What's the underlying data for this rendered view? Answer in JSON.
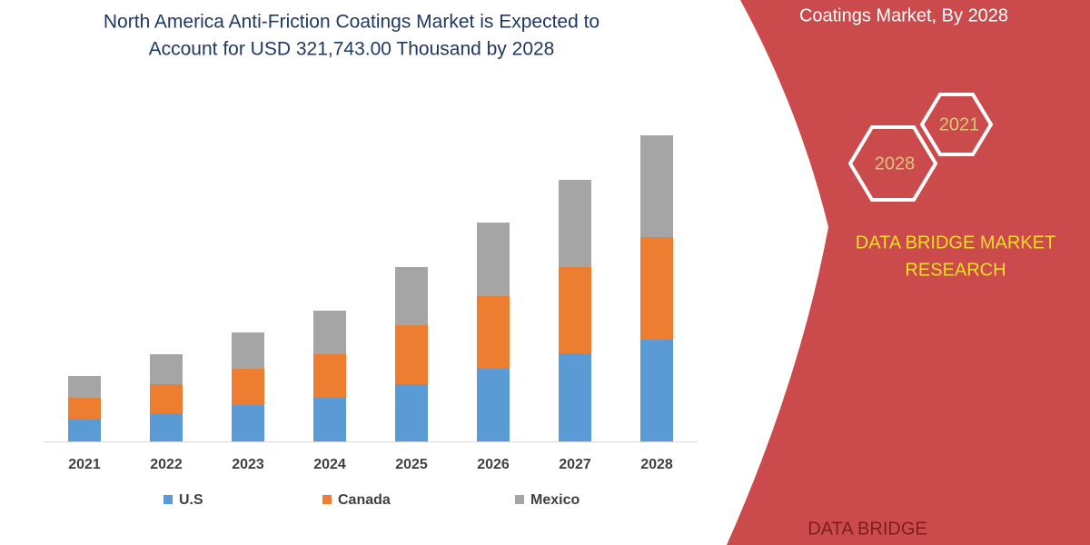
{
  "chart_data": {
    "type": "stacked-bar",
    "title": [
      "North America Anti-Friction Coatings Market is Expected to",
      "Account for USD 321,743.00 Thousand by 2028"
    ],
    "categories": [
      "2021",
      "2022",
      "2023",
      "2024",
      "2025",
      "2026",
      "2027",
      "2028"
    ],
    "series": [
      {
        "name": "U.S",
        "color": "#5b9bd5",
        "values": [
          24,
          31,
          40,
          48,
          63,
          80,
          97,
          112
        ]
      },
      {
        "name": "Canada",
        "color": "#ed7d31",
        "values": [
          24,
          32,
          40,
          48,
          65,
          80,
          95,
          113
        ]
      },
      {
        "name": "Mexico",
        "color": "#a5a5a5",
        "values": [
          24,
          33,
          40,
          48,
          64,
          81,
          96,
          112
        ]
      }
    ],
    "ylim": [
      0,
      340
    ]
  },
  "panel": {
    "heading": "Coatings Market, By 2028",
    "hexagons": [
      "2021",
      "2028"
    ],
    "brand": [
      "DATA BRIDGE MARKET",
      "RESEARCH"
    ],
    "logo": "DATA BRIDGE"
  }
}
